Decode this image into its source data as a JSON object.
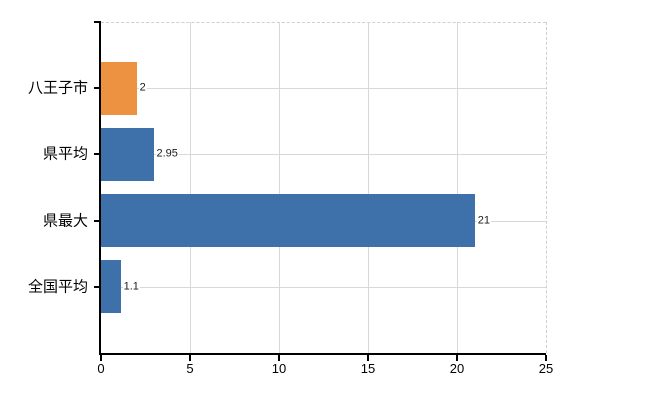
{
  "chart_data": {
    "type": "bar",
    "orientation": "horizontal",
    "title": "",
    "categories": [
      "八王子市",
      "県平均",
      "県最大",
      "全国平均"
    ],
    "values": [
      2,
      2.95,
      21,
      1.1
    ],
    "value_labels": [
      "2",
      "2.95",
      "21",
      "1.1"
    ],
    "bar_colors": [
      "#EC9240",
      "#3E70AA",
      "#3E70AA",
      "#3E70AA"
    ],
    "xlim": [
      0,
      25
    ],
    "x_ticks": [
      0,
      5,
      10,
      15,
      20,
      25
    ],
    "grid": true,
    "legend": "none",
    "xlabel": "",
    "ylabel": ""
  },
  "colors": {
    "background": "#ffffff",
    "axis": "#000000",
    "gridline": "#d8d8d8",
    "plot_border": "#cfcfcf",
    "category_text": "#000000",
    "value_text": "#1a1a1a"
  }
}
